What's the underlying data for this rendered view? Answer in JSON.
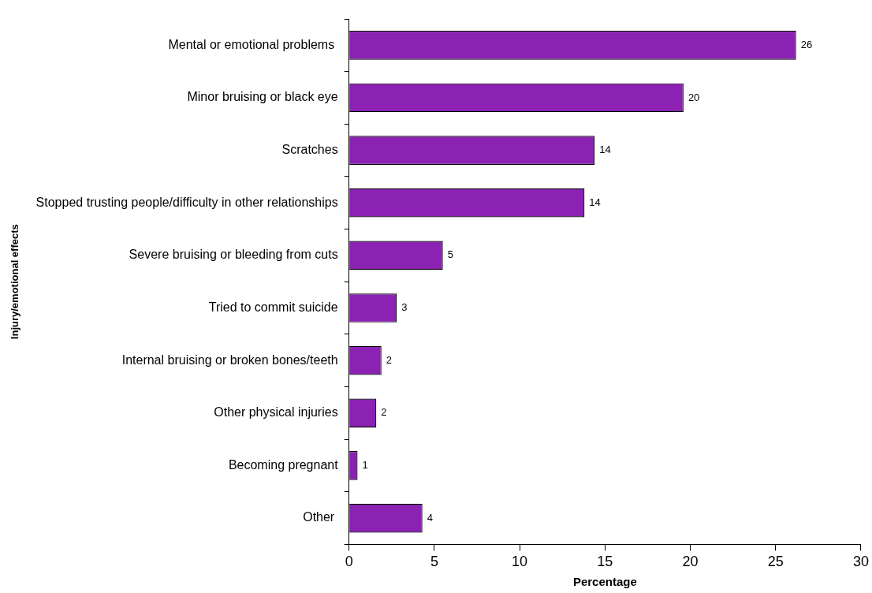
{
  "chart_data": {
    "type": "bar",
    "orientation": "horizontal",
    "xlabel": "Percentage",
    "ylabel": "Injury/emotional effects",
    "categories": [
      "Mental or emotional problems ",
      "Minor bruising or black eye",
      "Scratches",
      "Stopped trusting people/difficulty in other relationships",
      "Severe bruising or bleeding from cuts",
      "Tried to commit suicide",
      "Internal bruising or broken bones/teeth",
      "Other physical injuries",
      "Becoming pregnant",
      "Other "
    ],
    "values": [
      26.2,
      19.6,
      14.4,
      13.8,
      5.5,
      2.8,
      1.9,
      1.6,
      0.5,
      4.3
    ],
    "value_labels": [
      "26",
      "20",
      "14",
      "14",
      "5",
      "3",
      "2",
      "2",
      "1",
      "4"
    ],
    "color": "#8b22b3",
    "xlim": [
      0,
      30
    ],
    "xticks": [
      0,
      5,
      10,
      15,
      20,
      25,
      30
    ],
    "grid": false,
    "legend": false
  }
}
